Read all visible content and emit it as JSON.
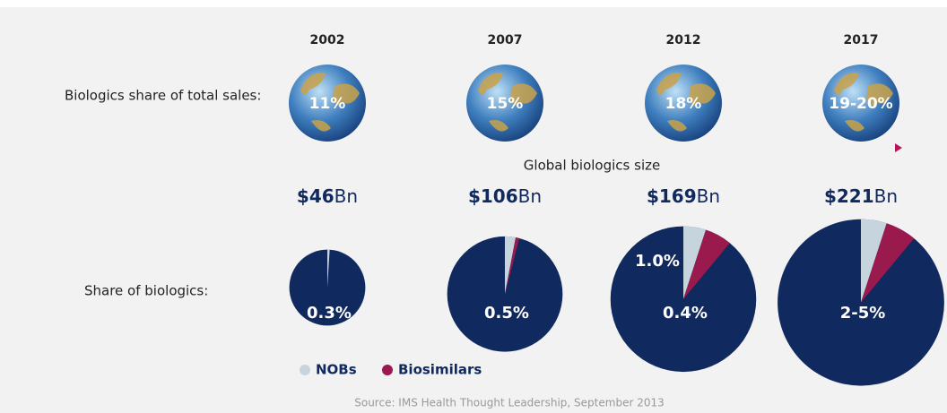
{
  "row_labels": {
    "total_sales": "Biologics share of total sales:",
    "share": "Share of biologics:"
  },
  "years": [
    "2002",
    "2007",
    "2012",
    "2017"
  ],
  "globe_labels": [
    "11%",
    "15%",
    "18%",
    "19-20%"
  ],
  "axis_title": "Global biologics size",
  "sizes": [
    {
      "value": 46,
      "label": "$46",
      "unit": "Bn"
    },
    {
      "value": 106,
      "label": "$106",
      "unit": "Bn"
    },
    {
      "value": 169,
      "label": "$169",
      "unit": "Bn"
    },
    {
      "value": 221,
      "label": "$221",
      "unit": "Bn"
    }
  ],
  "pies": [
    {
      "nobs": 1,
      "biosimilars": 0,
      "label": "0.3%"
    },
    {
      "nobs": 3,
      "biosimilars": 1,
      "label": "0.5%"
    },
    {
      "nobs": 5,
      "biosimilars": 6,
      "label": "0.4%",
      "label_upper": "1.0%"
    },
    {
      "nobs": 5,
      "biosimilars": 6,
      "label": "2-5%"
    }
  ],
  "colors": {
    "pie": "#10295e",
    "nobs": "#c6d4de",
    "biosimilars": "#9a1a4e"
  },
  "legend": {
    "nobs": "NOBs",
    "biosimilars": "Biosimilars"
  },
  "source": "Source: IMS Health Thought Leadership, September 2013"
}
